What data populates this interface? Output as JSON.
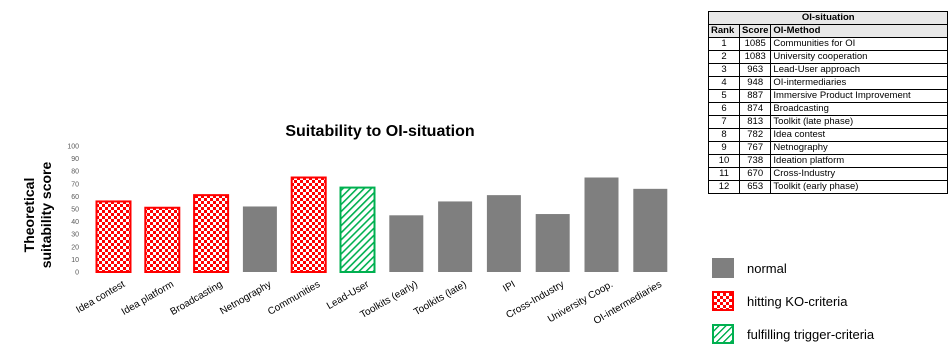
{
  "chart_data": {
    "type": "bar",
    "title": "Suitability to OI-situation",
    "ylabel_line1": "Theoretical",
    "ylabel_line2": "suitability score",
    "ylim": [
      0,
      100
    ],
    "yticks": [
      "0",
      "10",
      "20",
      "30",
      "40",
      "50",
      "60",
      "70",
      "80",
      "90",
      "100"
    ],
    "grid": false,
    "categories": [
      "Idea contest",
      "Idea platform",
      "Broadcasting",
      "Netnography",
      "Communities",
      "Lead-User",
      "Toolkits (early)",
      "Toolkits (late)",
      "IPI",
      "Cross-Industry",
      "University Coop.",
      "OI-intermediaries"
    ],
    "values": [
      56,
      51,
      61,
      52,
      75,
      67,
      45,
      56,
      61,
      46,
      75,
      66
    ],
    "styles": [
      "ko",
      "ko",
      "ko",
      "normal",
      "ko",
      "trigger",
      "normal",
      "normal",
      "normal",
      "normal",
      "normal",
      "normal"
    ],
    "colors": {
      "normal": "#7f7f7f",
      "ko": "#ff0000",
      "trigger": "#00b050"
    }
  },
  "table": {
    "title": "OI-situation",
    "headers": [
      "Rank",
      "Score",
      "OI-Method"
    ],
    "rows": [
      [
        "1",
        "1085",
        "Communities for OI"
      ],
      [
        "2",
        "1083",
        "University cooperation"
      ],
      [
        "3",
        "963",
        "Lead-User approach"
      ],
      [
        "4",
        "948",
        "OI-intermediaries"
      ],
      [
        "5",
        "887",
        "Immersive Product Improvement"
      ],
      [
        "6",
        "874",
        "Broadcasting"
      ],
      [
        "7",
        "813",
        "Toolkit (late phase)"
      ],
      [
        "8",
        "782",
        "Idea contest"
      ],
      [
        "9",
        "767",
        "Netnography"
      ],
      [
        "10",
        "738",
        "Ideation platform"
      ],
      [
        "11",
        "670",
        "Cross-Industry"
      ],
      [
        "12",
        "653",
        "Toolkit (early phase)"
      ]
    ]
  },
  "legend": [
    {
      "label": "normal",
      "style": "normal"
    },
    {
      "label": "hitting KO-criteria",
      "style": "ko"
    },
    {
      "label": "fulfilling trigger-criteria",
      "style": "trigger"
    }
  ]
}
